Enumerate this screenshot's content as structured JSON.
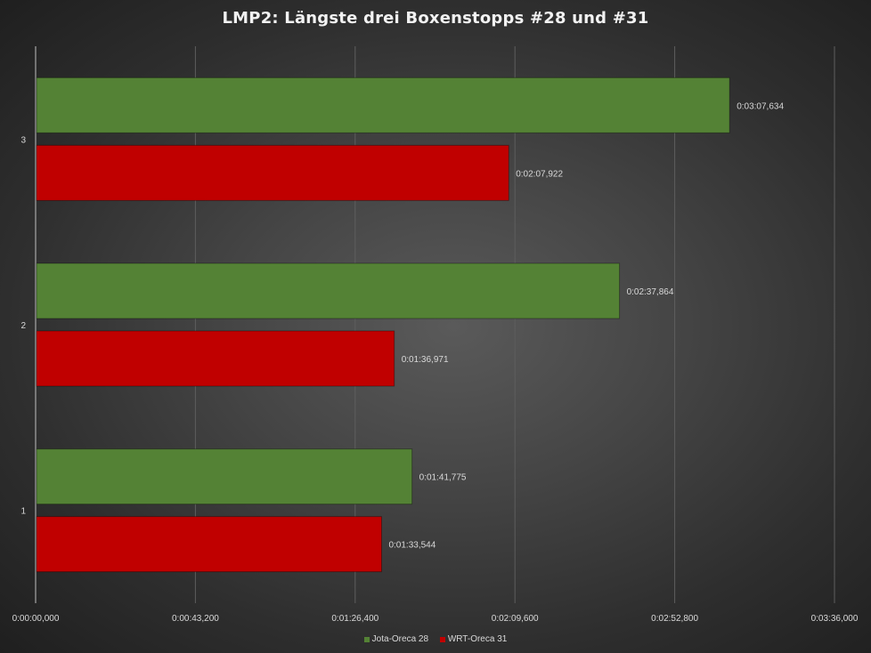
{
  "chart_data": {
    "type": "bar",
    "orientation": "horizontal",
    "title": "LMP2: Längste drei Boxenstopps #28 und #31",
    "categories": [
      "1",
      "2",
      "3"
    ],
    "series": [
      {
        "name": "Jota-Oreca 28",
        "color": "#548235",
        "values": [
          101.775,
          157.864,
          187.634
        ],
        "labels": [
          "0:01:41,775",
          "0:02:37,864",
          "0:03:07,634"
        ]
      },
      {
        "name": "WRT-Oreca 31",
        "color": "#c00000",
        "values": [
          93.544,
          96.971,
          127.922
        ],
        "labels": [
          "0:01:33,544",
          "0:01:36,971",
          "0:02:07,922"
        ]
      }
    ],
    "x_unit": "seconds",
    "xlim": [
      0,
      216
    ],
    "x_ticks": [
      0,
      43.2,
      86.4,
      129.6,
      172.8,
      216
    ],
    "x_tick_labels": [
      "0:00:00,000",
      "0:00:43,200",
      "0:01:26,400",
      "0:02:09,600",
      "0:02:52,800",
      "0:03:36,000"
    ],
    "grid": true,
    "legend_position": "bottom"
  }
}
